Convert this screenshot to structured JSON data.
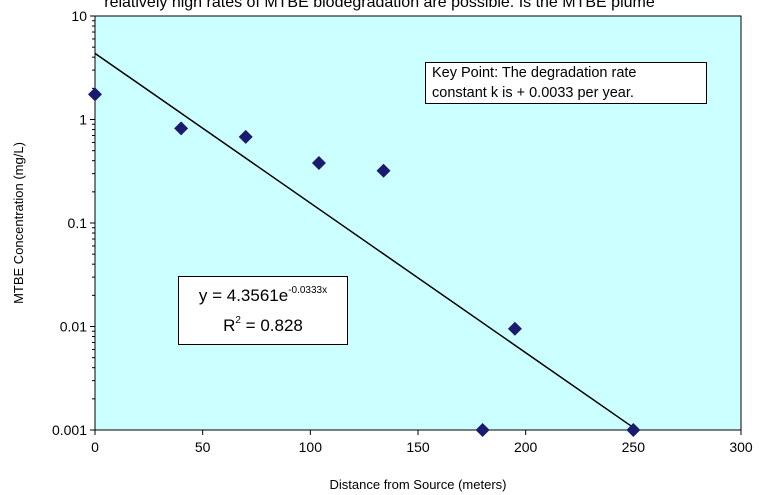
{
  "page": {
    "top_caption": "relatively high rates of MTBE biodegradation are possible. Is the MTBE plume"
  },
  "colors": {
    "plot_background": "#ccffff",
    "marker": "#1a1a6e",
    "trendline": "#000000"
  },
  "annotations": {
    "key_point_line1": "Key Point: The degradation rate",
    "key_point_line2": "constant k is + 0.0033 per year.",
    "equation_prefix": "y = 4.3561e",
    "equation_exponent": "-0.0333x",
    "r2_prefix": "R",
    "r2_exponent": "2",
    "r2_value": " = 0.828"
  },
  "chart_data": {
    "type": "scatter",
    "xlabel": "Distance from Source (meters)",
    "ylabel": "MTBE Concentration (mg/L)",
    "xlim": [
      0,
      300
    ],
    "ylim": [
      0.001,
      10
    ],
    "yscale": "log",
    "grid": false,
    "legend": "none",
    "x_ticks": [
      "0",
      "50",
      "100",
      "150",
      "200",
      "250",
      "300"
    ],
    "y_ticks": [
      "0.001",
      "0.01",
      "0.1",
      "1",
      "10"
    ],
    "series": [
      {
        "marker": "diamond",
        "points": [
          {
            "x": 0,
            "y": 1.75
          },
          {
            "x": 40,
            "y": 0.82
          },
          {
            "x": 70,
            "y": 0.68
          },
          {
            "x": 104,
            "y": 0.38
          },
          {
            "x": 134,
            "y": 0.32
          },
          {
            "x": 180,
            "y": 0.001
          },
          {
            "x": 195,
            "y": 0.0095
          },
          {
            "x": 250,
            "y": 0.001
          }
        ]
      }
    ],
    "trendline": {
      "type": "exponential",
      "a": 4.3561,
      "b": -0.0333,
      "x_range": [
        0,
        250
      ]
    }
  }
}
